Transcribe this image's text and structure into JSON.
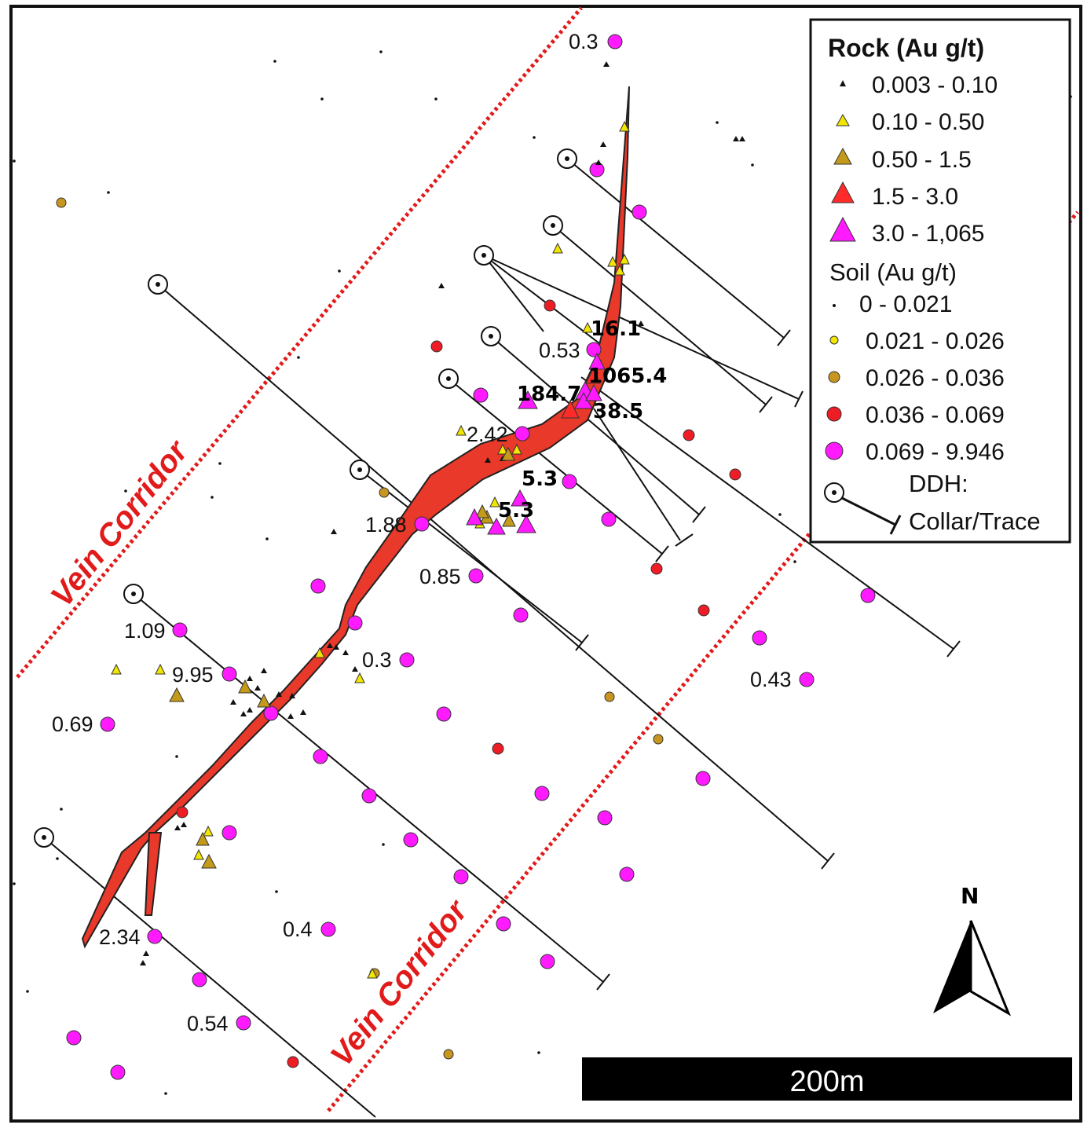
{
  "map": {
    "corridor_label_1": "Vein Corridor",
    "corridor_label_2": "Vein Corridor",
    "north_label": "N",
    "scale_bar_label": "200m"
  },
  "legend": {
    "rock_title": "Rock (Au g/t)",
    "rock_items": [
      {
        "label": "0.003 - 0.10",
        "symbol": "triangle-small",
        "color": "#111111"
      },
      {
        "label": "0.10 - 0.50",
        "symbol": "triangle",
        "color": "#f2e600"
      },
      {
        "label": "0.50 - 1.5",
        "symbol": "triangle",
        "color": "#c49a1a"
      },
      {
        "label": "1.5 - 3.0",
        "symbol": "triangle",
        "color": "#ff2a2a"
      },
      {
        "label": "3.0 - 1,065",
        "symbol": "triangle",
        "color": "#ff1aff"
      }
    ],
    "soil_title": "Soil (Au g/t)",
    "soil_items": [
      {
        "label": "0 - 0.021",
        "symbol": "dot",
        "color": "#111111"
      },
      {
        "label": "0.021 - 0.026",
        "symbol": "circle",
        "color": "#f2e600"
      },
      {
        "label": "0.026 - 0.036",
        "symbol": "circle",
        "color": "#c8961e"
      },
      {
        "label": "0.036 - 0.069",
        "symbol": "circle",
        "color": "#ee1c24"
      },
      {
        "label": "0.069 - 9.946",
        "symbol": "circle",
        "color": "#ff1aff"
      }
    ],
    "ddh_label_1": "DDH:",
    "ddh_label_2": "Collar/Trace"
  },
  "colors": {
    "vein": "#e8392a",
    "corridor": "#e11b1b",
    "soil_magenta": "#ff1aff",
    "soil_red": "#ee1c24",
    "soil_brown": "#c8961e",
    "rock_yellow": "#f2e600",
    "rock_brown": "#c49a1a"
  },
  "sample_labels": [
    {
      "id": "l1",
      "text": "0.3"
    },
    {
      "id": "l2",
      "text": "16.1"
    },
    {
      "id": "l3",
      "text": "0.53"
    },
    {
      "id": "l4",
      "text": "1065.4"
    },
    {
      "id": "l5",
      "text": "184.7"
    },
    {
      "id": "l6",
      "text": "38.5"
    },
    {
      "id": "l7",
      "text": "2.42"
    },
    {
      "id": "l8",
      "text": "5.3"
    },
    {
      "id": "l9",
      "text": "5.3"
    },
    {
      "id": "l10",
      "text": "1.88"
    },
    {
      "id": "l11",
      "text": "0.85"
    },
    {
      "id": "l12",
      "text": "1.09"
    },
    {
      "id": "l13",
      "text": "9.95"
    },
    {
      "id": "l14",
      "text": "0.3"
    },
    {
      "id": "l15",
      "text": "0.69"
    },
    {
      "id": "l16",
      "text": "0.43"
    },
    {
      "id": "l17",
      "text": "2.34"
    },
    {
      "id": "l18",
      "text": "0.4"
    },
    {
      "id": "l19",
      "text": "0.54"
    }
  ]
}
